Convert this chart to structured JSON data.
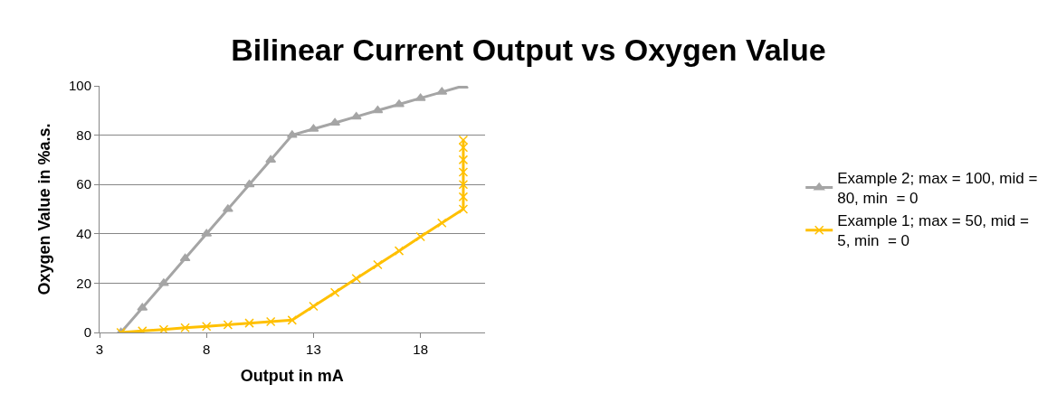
{
  "chart_data": {
    "type": "line",
    "title": "Bilinear Current Output vs Oxygen Value",
    "xlabel": "Output in mA",
    "ylabel": "Oxygen Value in %a.s.",
    "xlim": [
      3,
      21
    ],
    "xticks": [
      3,
      8,
      13,
      18
    ],
    "ylim": [
      0,
      100
    ],
    "yticks": [
      0,
      20,
      40,
      60,
      80,
      100
    ],
    "grid": "y",
    "legend": "right",
    "series": [
      {
        "name": "Example 2; max = 100, mid = 80, min  = 0",
        "color": "#a5a5a5",
        "marker": "triangle",
        "x": [
          4,
          5,
          6,
          7,
          8,
          9,
          10,
          11,
          12,
          13,
          14,
          15,
          16,
          17,
          18,
          19,
          20
        ],
        "values": [
          0,
          10,
          20,
          30,
          40,
          50,
          60,
          70,
          80,
          82.5,
          85,
          87.5,
          90,
          92.5,
          95,
          97.5,
          100
        ]
      },
      {
        "name": "Example 1; max = 50, mid = 5, min  = 0",
        "color": "#ffc000",
        "marker": "cross",
        "x": [
          4,
          5,
          6,
          7,
          8,
          9,
          10,
          11,
          12,
          13,
          14,
          15,
          16,
          17,
          18,
          19,
          20,
          20,
          20,
          20,
          20,
          20,
          20
        ],
        "values": [
          0,
          0.6,
          1.2,
          1.9,
          2.5,
          3.1,
          3.8,
          4.4,
          5,
          10.6,
          16.2,
          21.9,
          27.5,
          33.1,
          38.8,
          44.4,
          50,
          55,
          60,
          65,
          70,
          75,
          78
        ]
      }
    ]
  }
}
